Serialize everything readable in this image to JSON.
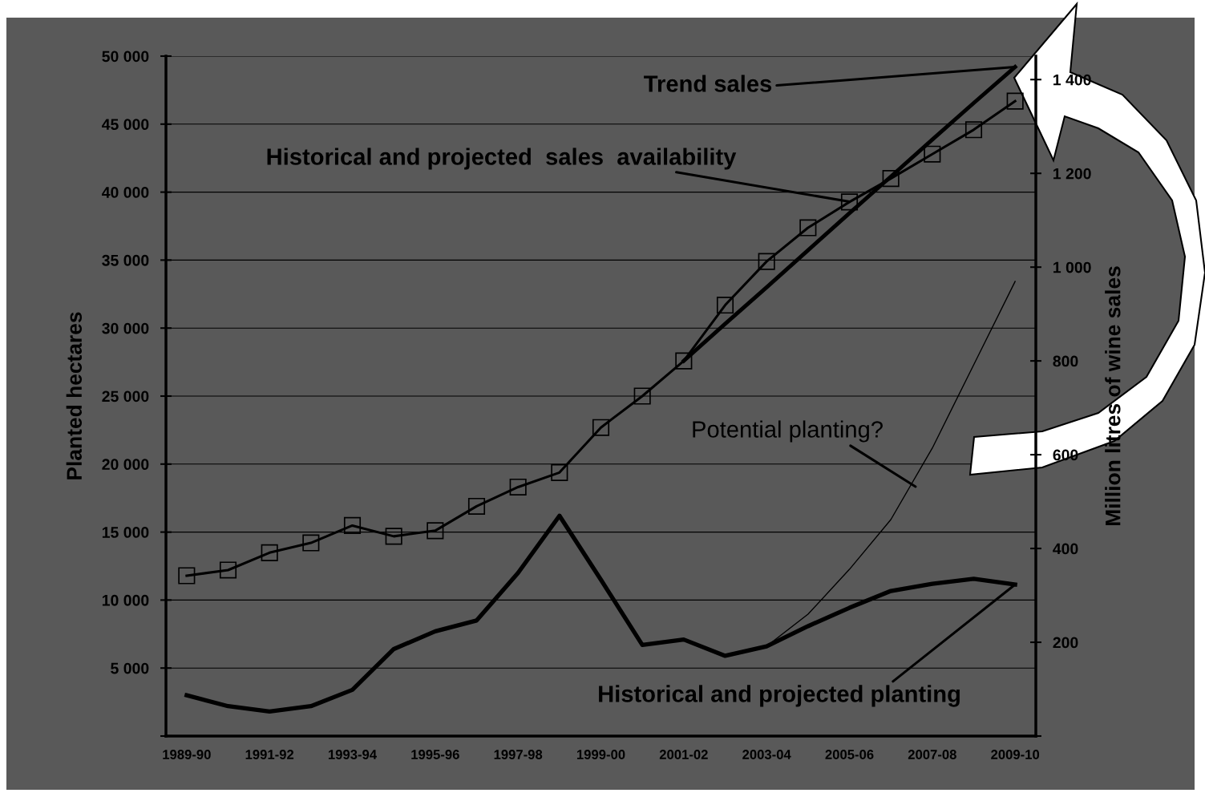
{
  "chart_data": {
    "type": "line",
    "categories": [
      "1989-90",
      null,
      "1991-92",
      null,
      "1993-94",
      null,
      "1995-96",
      null,
      "1997-98",
      null,
      "1999-00",
      null,
      "2001-02",
      null,
      "2003-04",
      null,
      "2005-06",
      null,
      "2007-08",
      null,
      "2009-10"
    ],
    "series": [
      {
        "color": "#000000",
        "marker": "square",
        "axis": "y2",
        "values": [
          342,
          354,
          391,
          412,
          449,
          426,
          438,
          490,
          531,
          562,
          658,
          725,
          800,
          919,
          1012,
          1084,
          1139,
          1189,
          1241,
          1293,
          1354
        ]
      },
      {
        "color": "#000000",
        "axis": "y2",
        "values": [
          null,
          null,
          null,
          null,
          null,
          null,
          null,
          null,
          null,
          null,
          null,
          null,
          800,
          879,
          957,
          1036,
          1115,
          1193,
          1272,
          1350,
          1427
        ]
      },
      {
        "color": "#000000",
        "values": [
          null,
          null,
          null,
          null,
          null,
          null,
          null,
          null,
          null,
          null,
          null,
          null,
          null,
          null,
          6600,
          8960,
          12260,
          15920,
          21170,
          27300,
          33430
        ]
      },
      {
        "color": "#000000",
        "values": [
          3000,
          2200,
          1800,
          2200,
          3400,
          6400,
          7700,
          8500,
          12000,
          16200,
          11500,
          6700,
          7100,
          5900,
          6600,
          8080,
          9430,
          10670,
          11200,
          11560,
          11140
        ]
      }
    ],
    "ylabel": "Planted hectares",
    "y2label": "Million litres of wine sales",
    "ylim": [
      0,
      50000
    ],
    "yticks": [
      {
        "value": 0,
        "label": null
      },
      {
        "value": 5000,
        "label": "5 000"
      },
      {
        "value": 10000,
        "label": "10 000"
      },
      {
        "value": 15000,
        "label": "15 000"
      },
      {
        "value": 20000,
        "label": "20 000"
      },
      {
        "value": 25000,
        "label": "25 000"
      },
      {
        "value": 30000,
        "label": "30 000"
      },
      {
        "value": 35000,
        "label": "35 000"
      },
      {
        "value": 40000,
        "label": "40 000"
      },
      {
        "value": 45000,
        "label": "45 000"
      },
      {
        "value": 50000,
        "label": "50 000"
      }
    ],
    "y2lim": [
      0,
      1450
    ],
    "y2ticks": [
      {
        "value": 0,
        "label": null
      },
      200,
      400,
      600,
      800,
      {
        "value": 1000,
        "label": "1 000"
      },
      {
        "value": 1200,
        "label": "1 200"
      },
      {
        "value": 1400,
        "label": "1 400"
      }
    ],
    "grid": "y",
    "legend": false,
    "annotations": [
      {
        "text": "Trend sales",
        "x": "2009-10",
        "y": 49200
      },
      {
        "text": "Historical and projected  sales  availability",
        "x": "2005-06",
        "y": 39300
      },
      "Potential planting?",
      {
        "text": "Historical and projected planting",
        "x": "2009-10",
        "y": 11140
      }
    ]
  }
}
